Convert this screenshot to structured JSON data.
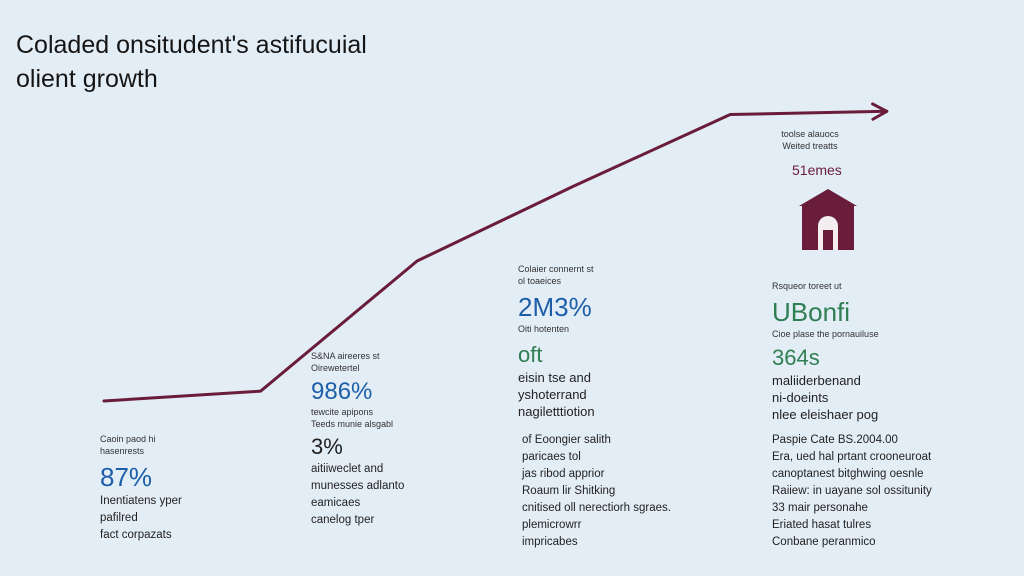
{
  "page": {
    "title_line1": "Coladed onsitudent's astifucuial",
    "title_line2": "olient growth"
  },
  "colors": {
    "line": "#6a1d3a",
    "blue": "#1d5fa8",
    "green": "#2f7f52",
    "background": "#e3edf6"
  },
  "chart_data": {
    "type": "line",
    "title": "Coladed onsitudent's astifucuial olient growth",
    "x": [
      0,
      1,
      2,
      3,
      4,
      5
    ],
    "values": [
      12,
      15,
      55,
      78,
      100,
      101
    ],
    "xlim": [
      0,
      5.8
    ],
    "ylim": [
      0,
      110
    ],
    "arrow": true,
    "grid": false
  },
  "stages": [
    {
      "caption1": "Caoin paod hi",
      "caption2": "hasenrests",
      "value": "87%",
      "lines": [
        "Inentiatens yper",
        "pafilred",
        "fact corpazats"
      ]
    },
    {
      "caption1": "S&NA aireeres st",
      "caption2": "Oirewetertel",
      "value": "986%",
      "sub1": "tewcite apipons",
      "sub2": "Teeds munie alsgabl",
      "value2": "3%",
      "lines": [
        "aitiiweclet and",
        "munesses adlanto",
        "eamicaes",
        "canelog tper"
      ]
    },
    {
      "caption1": "Colaier connernt st",
      "caption2": "ol toaeices",
      "value": "2M3%",
      "sub1": "Oiti hotenten",
      "value2": "oft",
      "mid_lines": [
        "eisin tse and",
        "yshoterrand",
        "nagiletttiotion"
      ],
      "lines": [
        "of Eoongier salith",
        "paricaes tol",
        "jas ribod apprior",
        "Roaum lir Shitking",
        "cnitised oll nerectiorh sgraes.",
        "plemicrowrr",
        "impricabes"
      ]
    },
    {
      "top1": "toolse alauocs",
      "top2": "Weited treatts",
      "label": "51emes",
      "caption1": "Rsqueor toreet ut",
      "value": "UBonfi",
      "sub1": "Cioe plase the pornauiluse",
      "value2": "364s",
      "mid_lines": [
        "maliiderbenand",
        "ni-doeints",
        "nlee eleishaer pog"
      ],
      "lines": [
        "Paspie Cate BS.2004.00",
        "Era, ued hal prtant crooneuroat",
        "canoptanest bitghwing oesnle",
        "Raiiew: in uayane sol ossitunity",
        "33 mair personahe",
        "Eriated hasat tulres",
        "Conbane peranmico"
      ]
    }
  ]
}
